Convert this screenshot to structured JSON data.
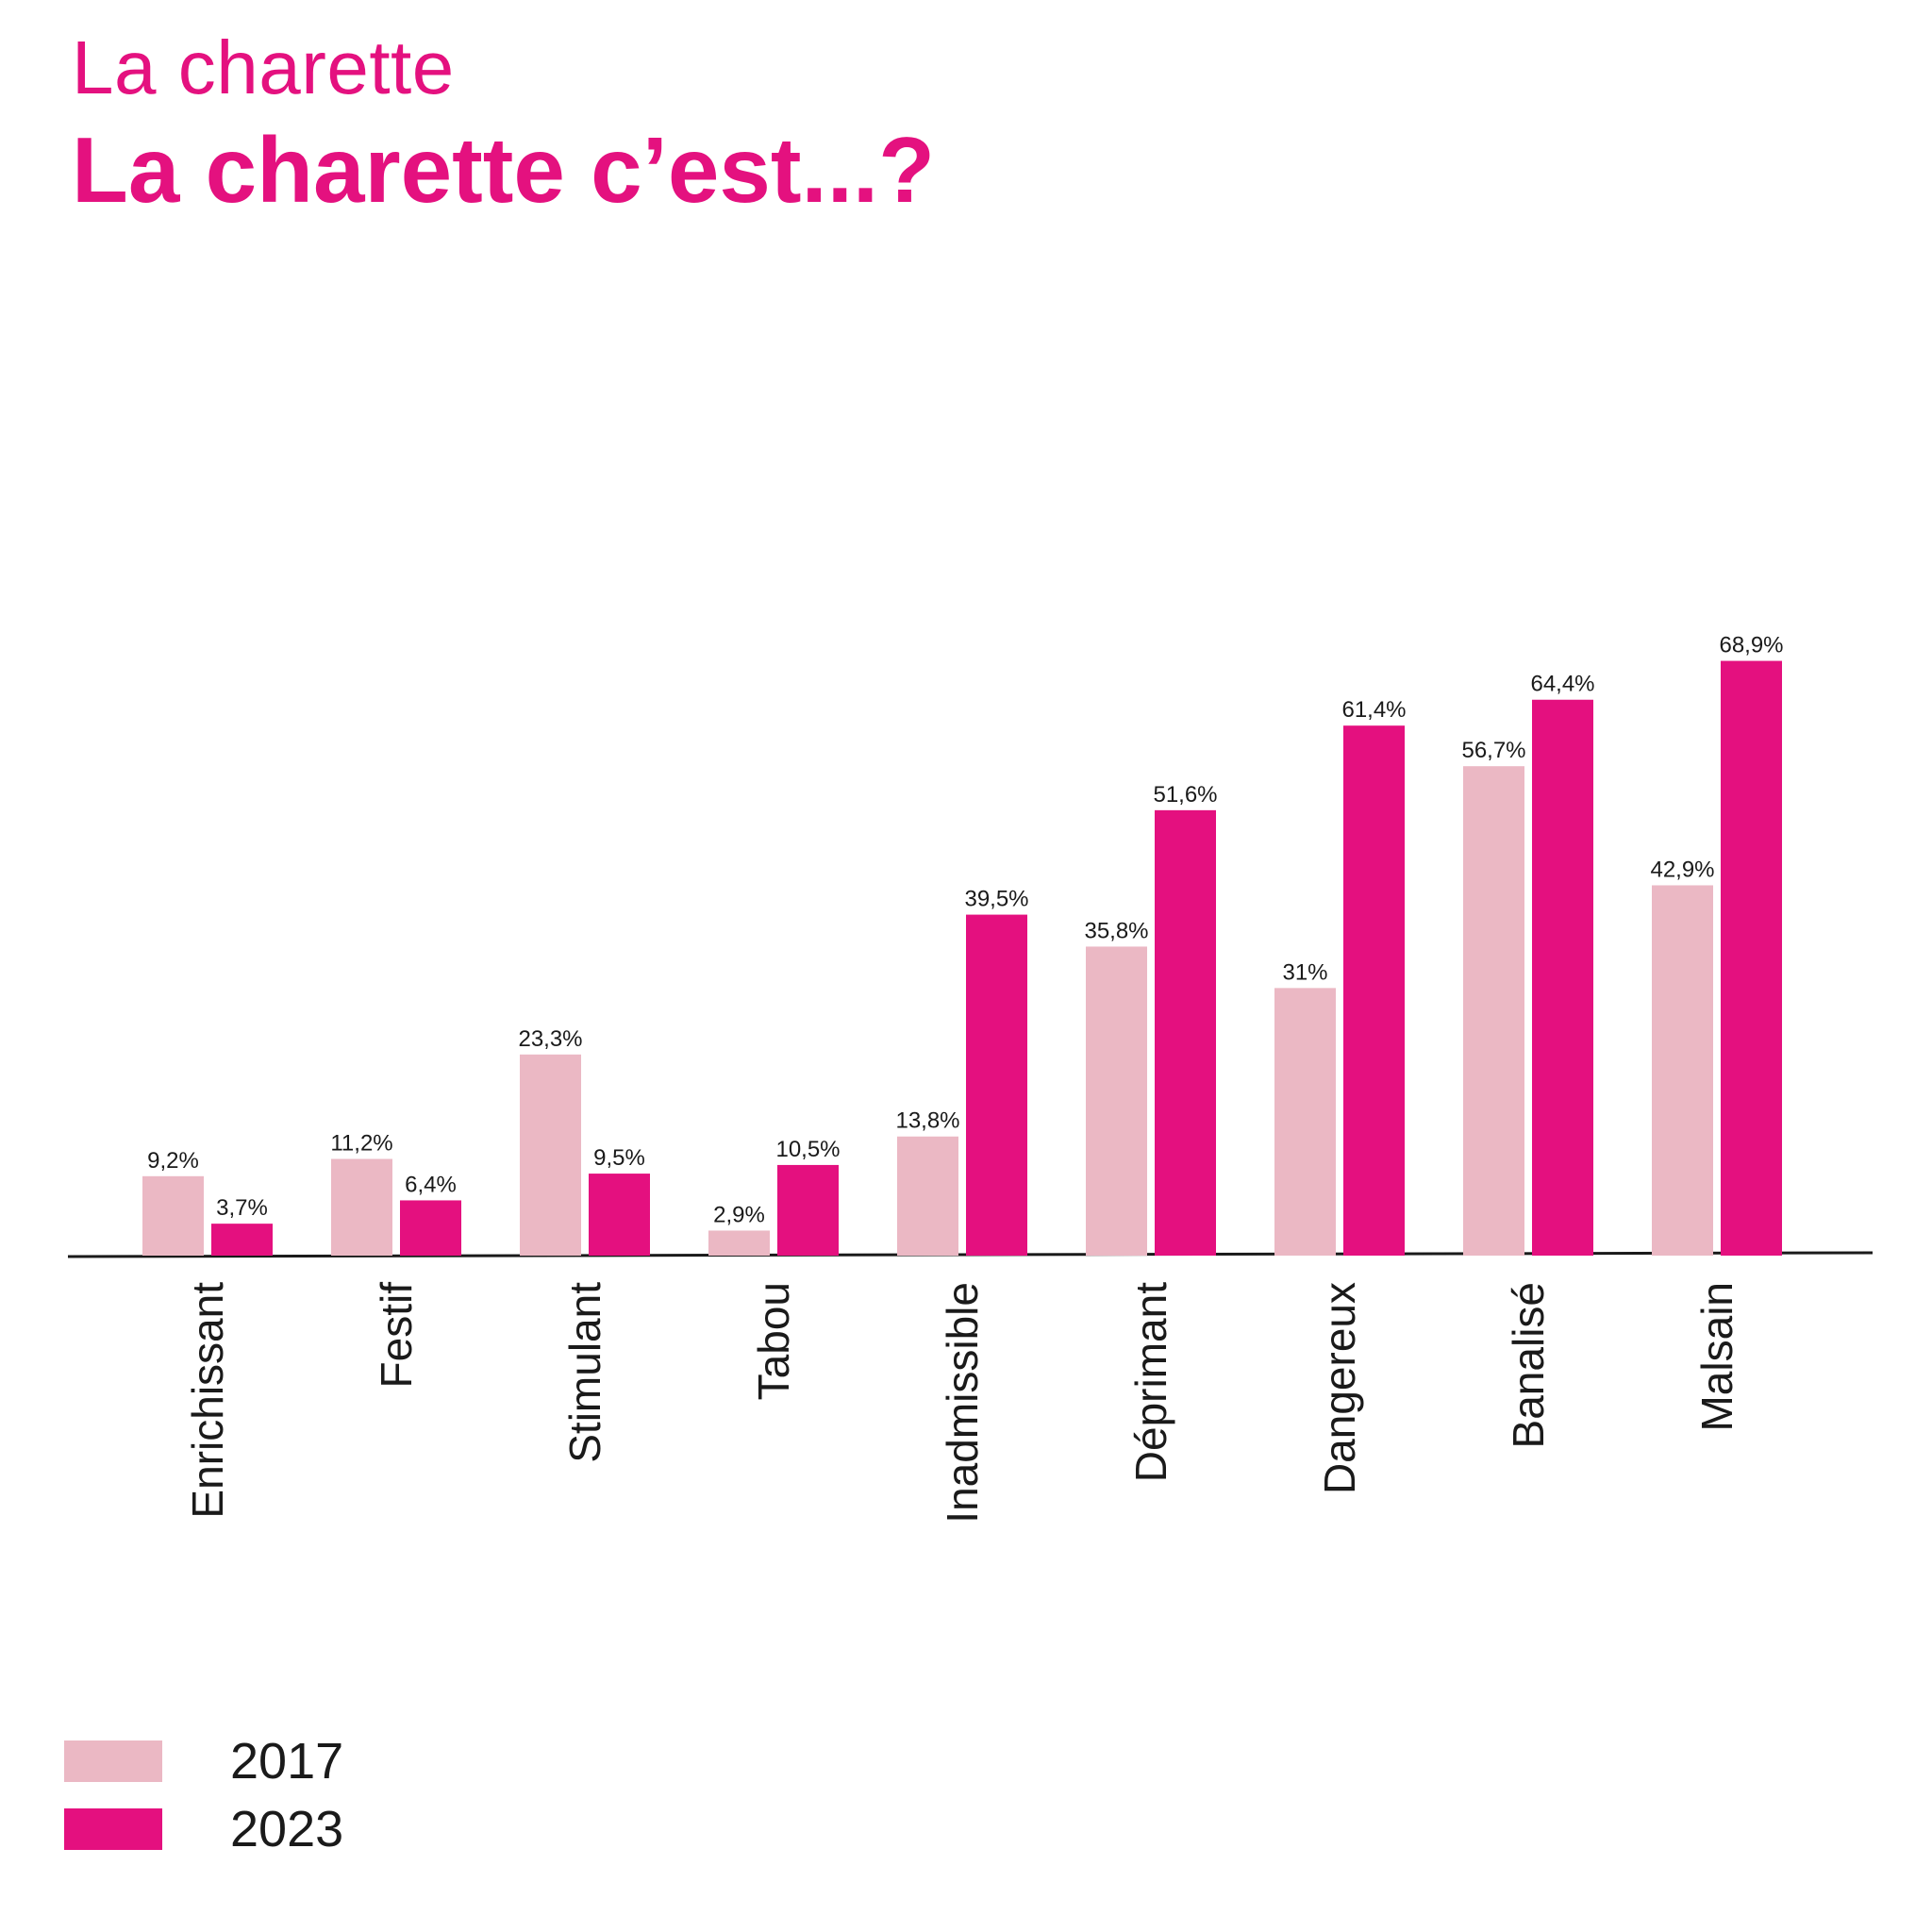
{
  "header": {
    "subtitle": "La charette",
    "title": "La charette c’est...?"
  },
  "colors": {
    "accent": "#e4117f",
    "series_2017": "#ebb8c4",
    "series_2023": "#e4107f",
    "axis": "#1a1a1a"
  },
  "chart_data": {
    "type": "bar",
    "title": "La charette c’est...?",
    "subtitle": "La charette",
    "categories": [
      "Enrichissant",
      "Festif",
      "Stimulant",
      "Tabou",
      "Inadmissible",
      "Déprimant",
      "Dangereux",
      "Banalisé",
      "Malsain"
    ],
    "series": [
      {
        "name": "2017",
        "values": [
          9.2,
          11.2,
          23.3,
          2.9,
          13.8,
          35.8,
          31,
          56.7,
          42.9
        ],
        "labels": [
          "9,2%",
          "11,2%",
          "23,3%",
          "2,9%",
          "13,8%",
          "35,8%",
          "31%",
          "56,7%",
          "42,9%"
        ]
      },
      {
        "name": "2023",
        "values": [
          3.7,
          6.4,
          9.5,
          10.5,
          39.5,
          51.6,
          61.4,
          64.4,
          68.9
        ],
        "labels": [
          "3,7%",
          "6,4%",
          "9,5%",
          "10,5%",
          "39,5%",
          "51,6%",
          "61,4%",
          "64,4%",
          "68,9%"
        ]
      }
    ],
    "ylim": [
      0,
      70
    ],
    "grid": false,
    "legend_position": "bottom-left",
    "xlabel": "",
    "ylabel": ""
  }
}
